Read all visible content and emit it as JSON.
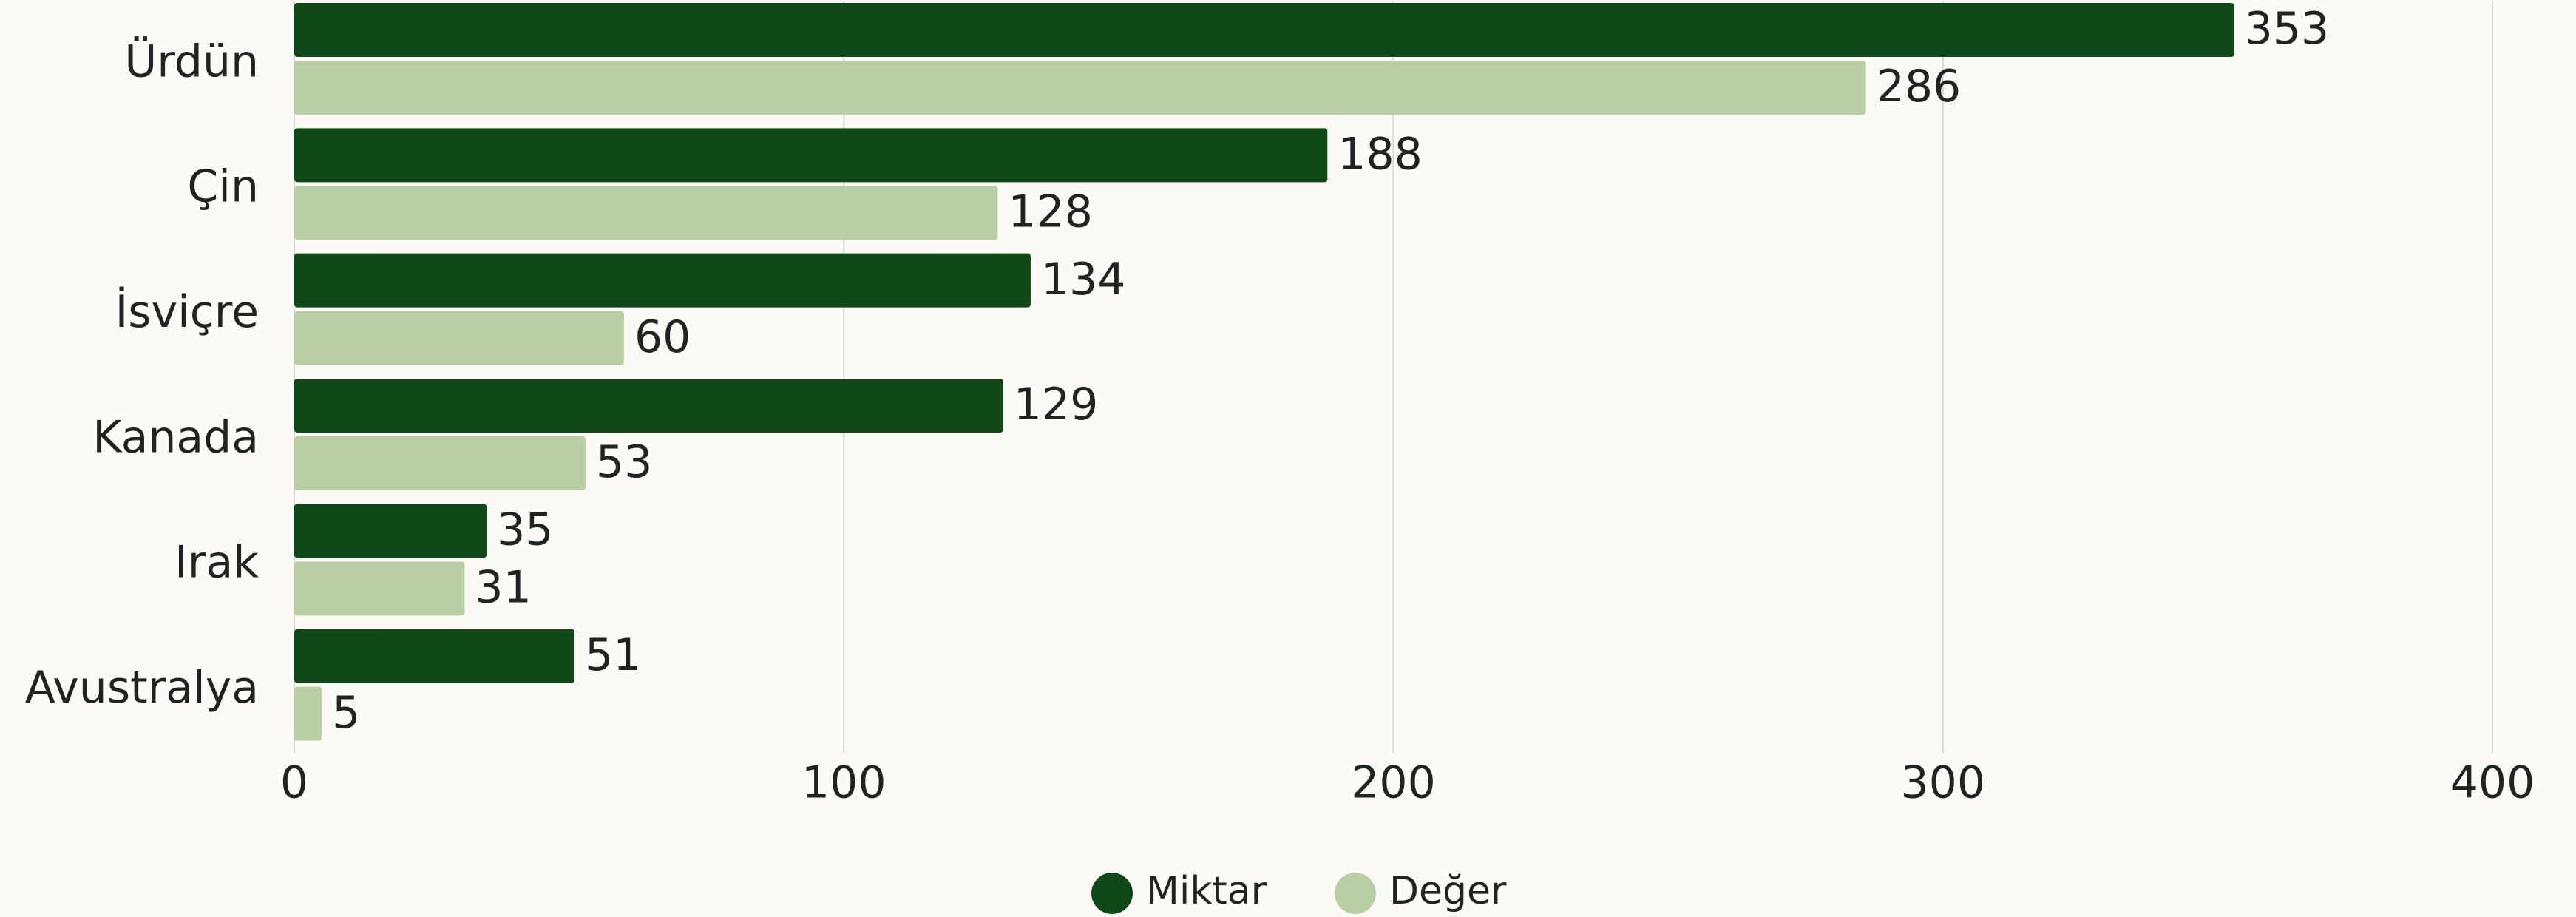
{
  "chart_data": {
    "type": "hbar",
    "categories": [
      "Ürdün",
      "Çin",
      "İsviçre",
      "Kanada",
      "Irak",
      "Avustralya"
    ],
    "series": [
      {
        "name": "Miktar",
        "color": "#10481a",
        "values": [
          353,
          188,
          134,
          129,
          35,
          51
        ]
      },
      {
        "name": "Değer",
        "color": "#b8cfa6",
        "values": [
          286,
          128,
          60,
          53,
          31,
          5
        ]
      }
    ],
    "xlim": [
      0,
      400
    ],
    "xticks": [
      0,
      100,
      200,
      300,
      400
    ],
    "grid": true,
    "legend": "bottom"
  }
}
